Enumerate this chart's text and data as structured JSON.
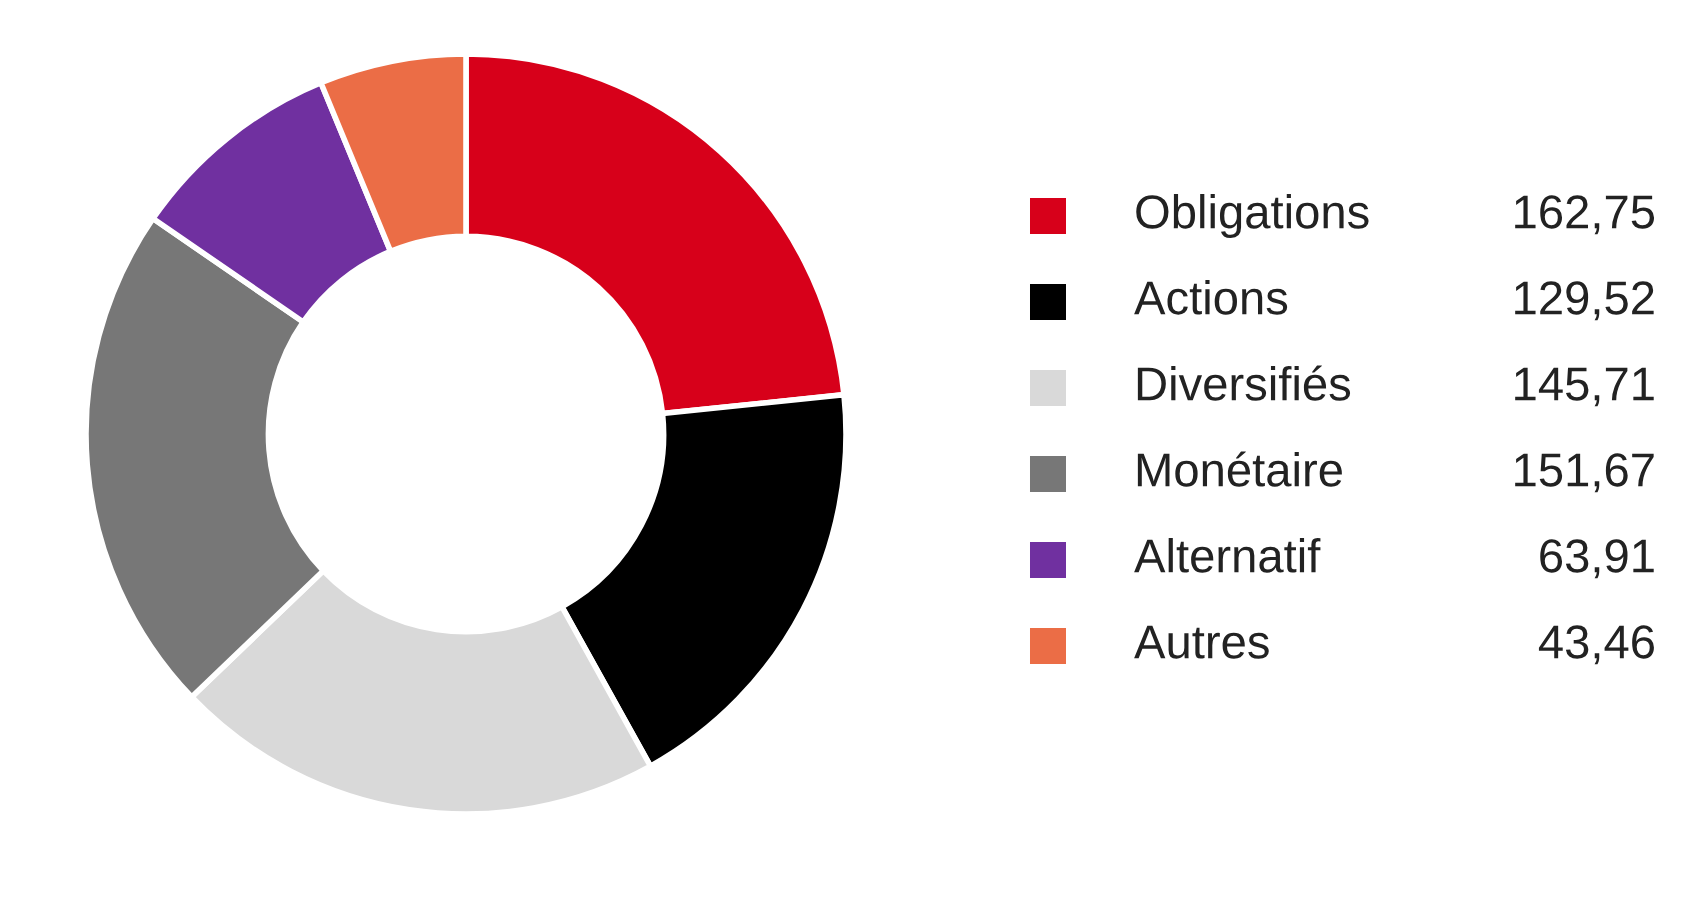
{
  "chart_data": {
    "type": "donut",
    "categories": [
      "Obligations",
      "Actions",
      "Diversifiés",
      "Monétaire",
      "Alternatif",
      "Autres"
    ],
    "values": [
      162.75,
      129.52,
      145.71,
      151.67,
      63.91,
      43.46
    ],
    "value_labels": [
      "162,75",
      "129,52",
      "145,71",
      "151,67",
      "63,91",
      "43,46"
    ],
    "colors": [
      "#d7001a",
      "#000000",
      "#d9d9d9",
      "#777777",
      "#7030a0",
      "#eb6d46"
    ],
    "legend": "right"
  }
}
